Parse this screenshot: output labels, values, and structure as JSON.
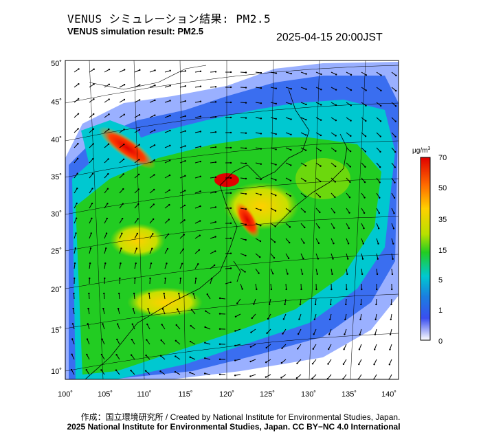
{
  "header": {
    "title_jp": "VENUS シミュレーション結果: PM2.5",
    "title_en": "VENUS simulation result: PM2.5",
    "timestamp": "2025-04-15 20:00JST"
  },
  "map": {
    "lat_labels": [
      "50˚",
      "45˚",
      "40˚",
      "35˚",
      "30˚",
      "25˚",
      "20˚",
      "15˚",
      "10˚"
    ],
    "lon_labels": [
      "100˚",
      "105˚",
      "110˚",
      "115˚",
      "120˚",
      "125˚",
      "130˚",
      "135˚",
      "140˚"
    ]
  },
  "colorbar": {
    "unit": "μg/m",
    "unit_sup": "3",
    "ticks": [
      "70",
      "50",
      "35",
      "15",
      "5",
      "1",
      "0"
    ],
    "colors": [
      "#e00000",
      "#ff6a00",
      "#ffd000",
      "#b8e000",
      "#22cc22",
      "#00c8d0",
      "#1a7fe0",
      "#3a4ef0",
      "#ffffff"
    ]
  },
  "footer": {
    "credit": "作成：国立環境研究所 / Created by National Institute for Environmental Studies, Japan.",
    "license": "2025 National Institute for Environmental Studies, Japan. CC BY−NC 4.0 International"
  }
}
